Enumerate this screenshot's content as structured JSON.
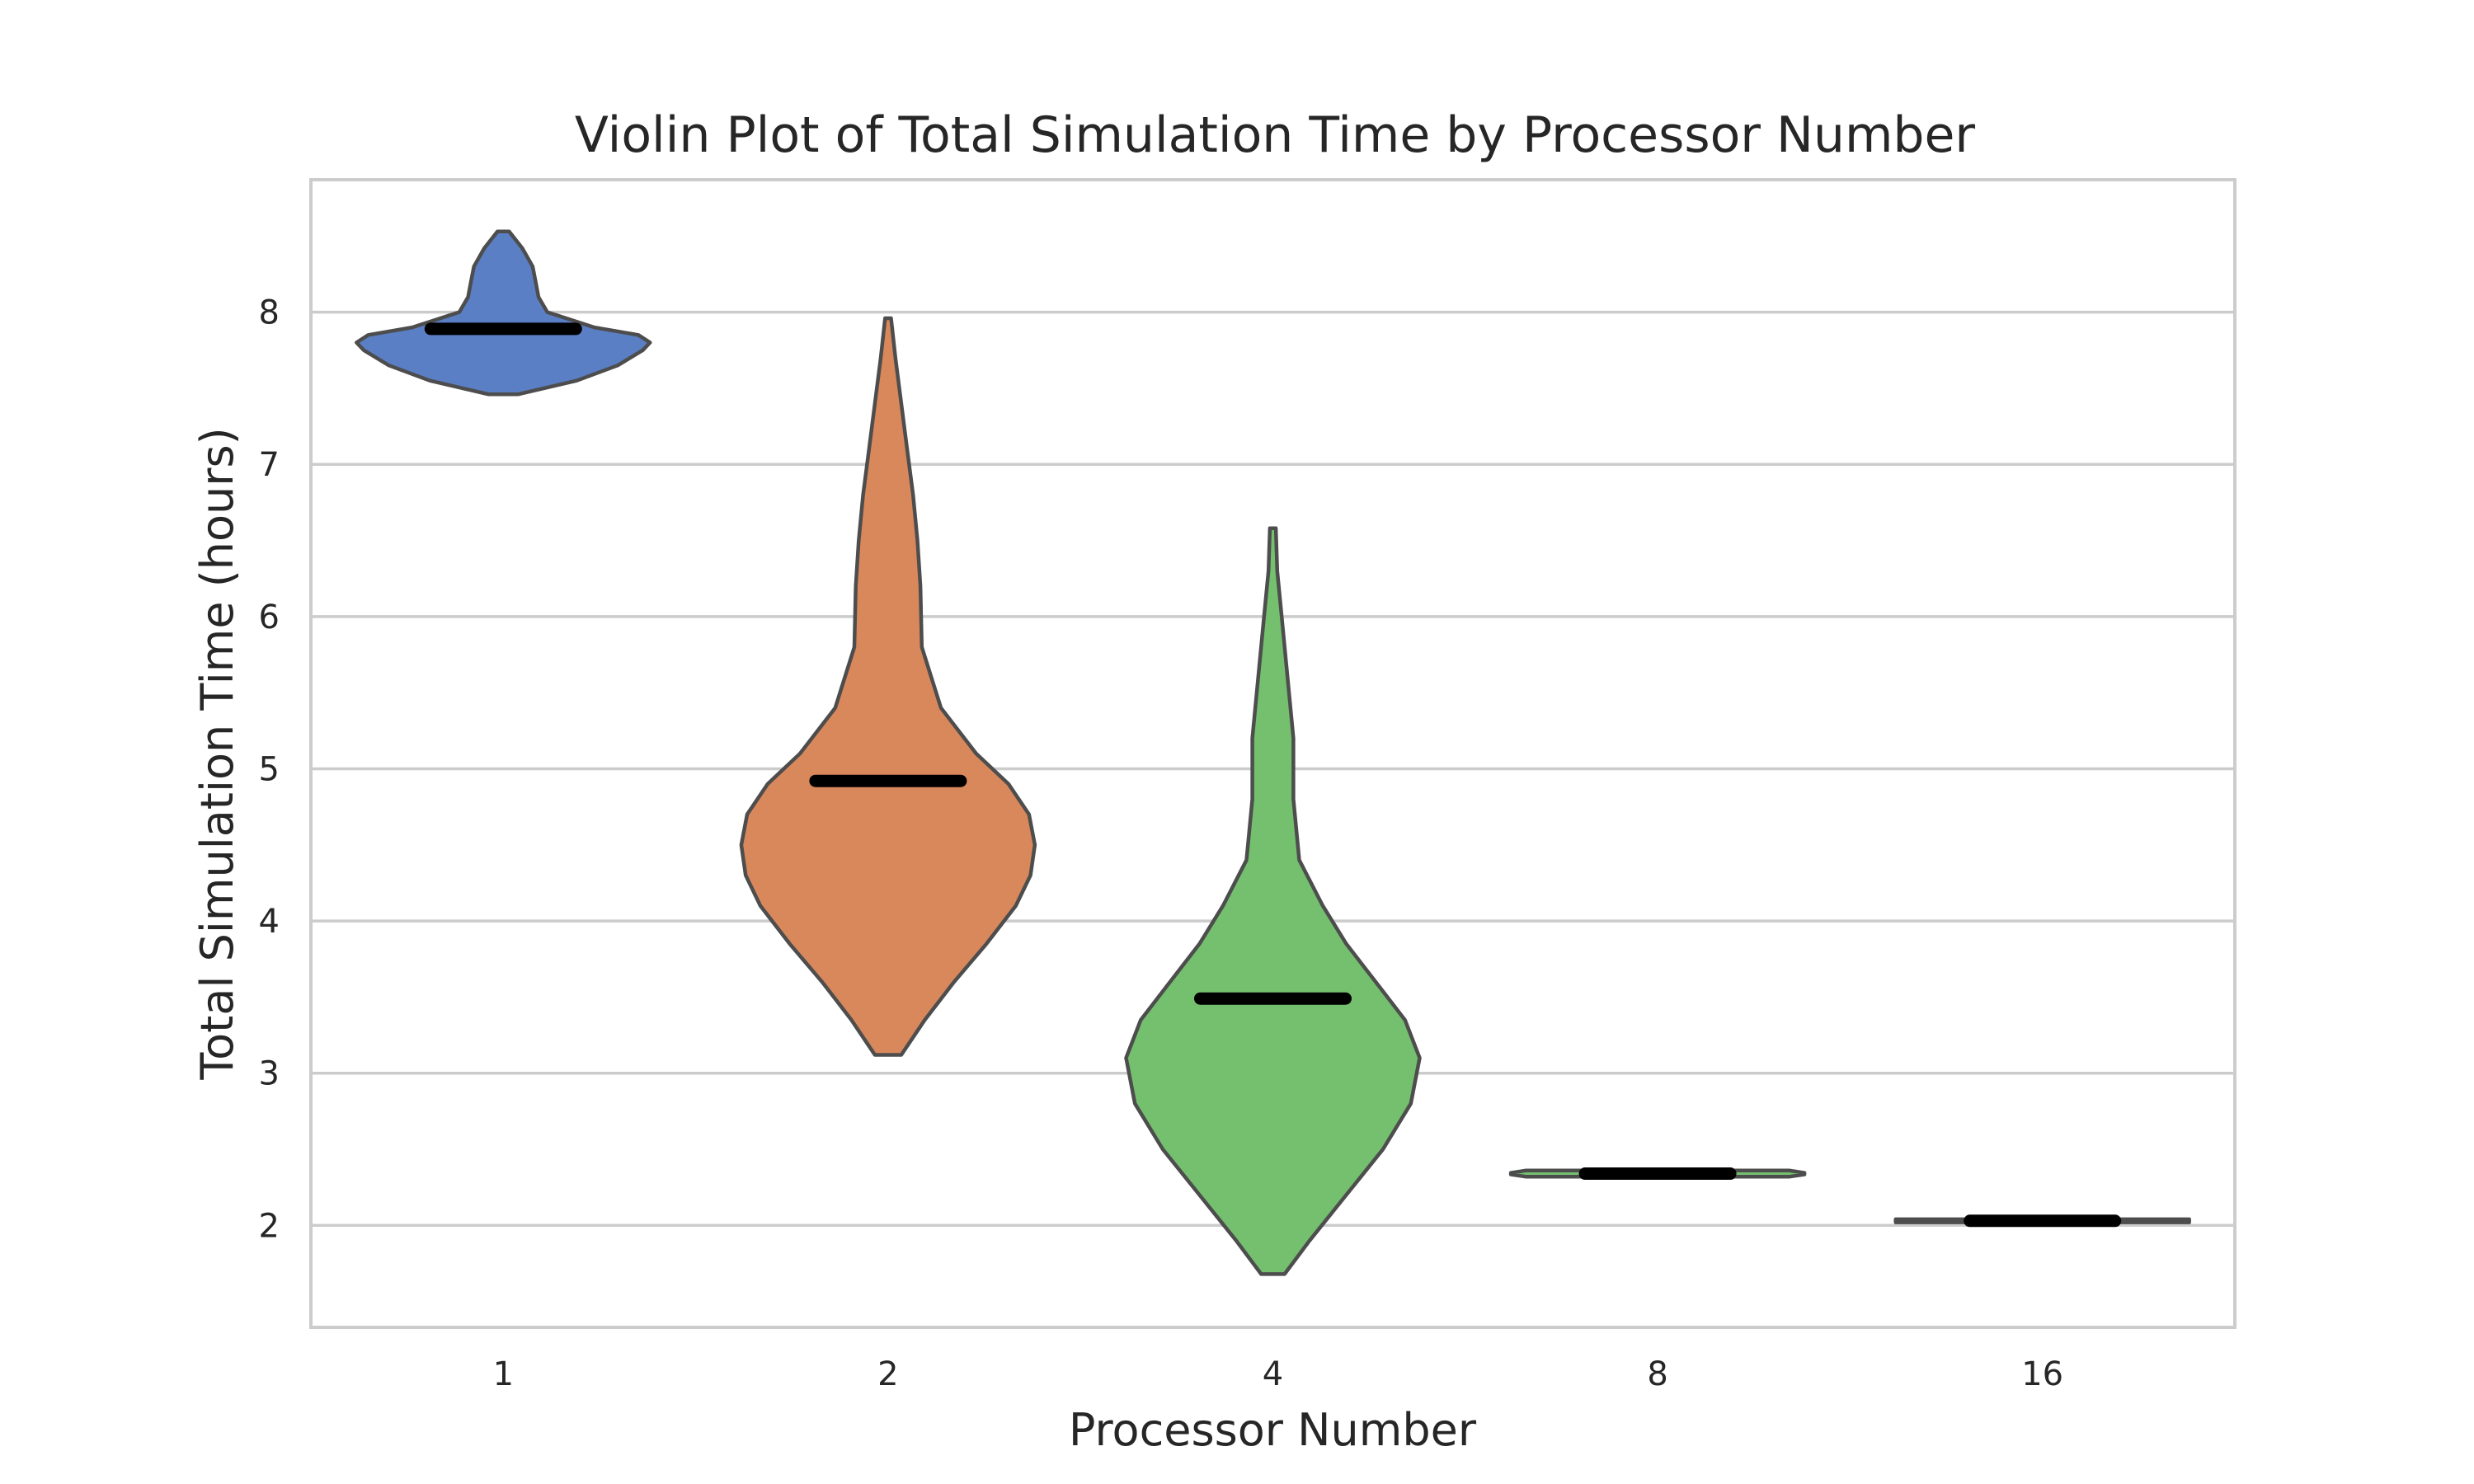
{
  "chart_data": {
    "type": "violin",
    "title": "Violin Plot of Total Simulation Time by Processor Number",
    "xlabel": "Processor Number",
    "ylabel": "Total Simulation Time (hours)",
    "categories": [
      "1",
      "2",
      "4",
      "8",
      "16"
    ],
    "ylim": [
      1.33,
      8.87
    ],
    "yticks": [
      2,
      3,
      4,
      5,
      6,
      7,
      8
    ],
    "grid": "horizontal",
    "colors": [
      "#5a7fc4",
      "#d9885c",
      "#74c06e",
      "#74c06e",
      "#74c06e"
    ],
    "violins": [
      {
        "category": "1",
        "median": 7.89,
        "min": 7.46,
        "max": 8.53,
        "density": [
          [
            7.46,
            0.1
          ],
          [
            7.55,
            0.5
          ],
          [
            7.65,
            0.78
          ],
          [
            7.75,
            0.95
          ],
          [
            7.8,
            1.0
          ],
          [
            7.85,
            0.92
          ],
          [
            7.9,
            0.62
          ],
          [
            8.0,
            0.3
          ],
          [
            8.1,
            0.24
          ],
          [
            8.2,
            0.22
          ],
          [
            8.3,
            0.2
          ],
          [
            8.42,
            0.13
          ],
          [
            8.53,
            0.04
          ]
        ]
      },
      {
        "category": "2",
        "median": 4.92,
        "min": 3.12,
        "max": 7.96,
        "density": [
          [
            3.12,
            0.09
          ],
          [
            3.35,
            0.25
          ],
          [
            3.6,
            0.45
          ],
          [
            3.85,
            0.67
          ],
          [
            4.1,
            0.87
          ],
          [
            4.3,
            0.97
          ],
          [
            4.5,
            1.0
          ],
          [
            4.7,
            0.96
          ],
          [
            4.9,
            0.82
          ],
          [
            5.1,
            0.6
          ],
          [
            5.4,
            0.36
          ],
          [
            5.8,
            0.23
          ],
          [
            6.2,
            0.22
          ],
          [
            6.5,
            0.2
          ],
          [
            6.8,
            0.17
          ],
          [
            7.1,
            0.13
          ],
          [
            7.4,
            0.09
          ],
          [
            7.7,
            0.05
          ],
          [
            7.96,
            0.02
          ]
        ]
      },
      {
        "category": "4",
        "median": 3.49,
        "min": 1.68,
        "max": 6.58,
        "density": [
          [
            1.68,
            0.08
          ],
          [
            1.9,
            0.25
          ],
          [
            2.2,
            0.5
          ],
          [
            2.5,
            0.75
          ],
          [
            2.8,
            0.94
          ],
          [
            3.1,
            1.0
          ],
          [
            3.35,
            0.9
          ],
          [
            3.6,
            0.7
          ],
          [
            3.85,
            0.5
          ],
          [
            4.1,
            0.34
          ],
          [
            4.4,
            0.18
          ],
          [
            4.8,
            0.14
          ],
          [
            5.2,
            0.14
          ],
          [
            5.6,
            0.1
          ],
          [
            6.0,
            0.06
          ],
          [
            6.3,
            0.03
          ],
          [
            6.58,
            0.02
          ]
        ]
      },
      {
        "category": "8",
        "median": 2.34,
        "min": 2.32,
        "max": 2.36,
        "density": [
          [
            2.32,
            0.9
          ],
          [
            2.335,
            1.0
          ],
          [
            2.345,
            1.0
          ],
          [
            2.36,
            0.9
          ]
        ]
      },
      {
        "category": "16",
        "median": 2.03,
        "min": 2.02,
        "max": 2.04,
        "density": [
          [
            2.02,
            1.0
          ],
          [
            2.03,
            1.0
          ],
          [
            2.04,
            1.0
          ]
        ]
      }
    ]
  }
}
